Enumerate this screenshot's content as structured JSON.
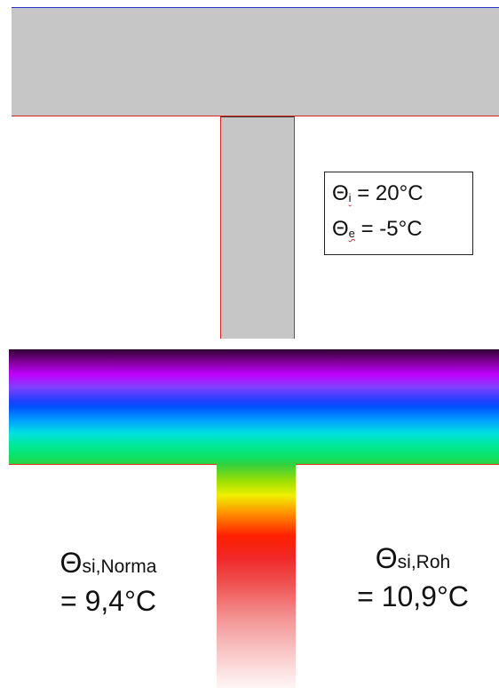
{
  "legend": {
    "interior": {
      "symbol": "Θ",
      "subscript": "i",
      "value": " = 20°C"
    },
    "exterior": {
      "symbol": "Θ",
      "subscript": "e",
      "value": " = -5°C"
    }
  },
  "results": {
    "norma": {
      "symbol": "Θ",
      "subscript": "si,Norma",
      "value": "= 9,4°C"
    },
    "roh": {
      "symbol": "Θ",
      "subscript": "si,Roh",
      "value": "= 10,9°C"
    }
  },
  "colors": {
    "structure_fill": "#c6c6c6",
    "boundary_line": "#dd2222",
    "outer_boundary": "#2233cc"
  }
}
